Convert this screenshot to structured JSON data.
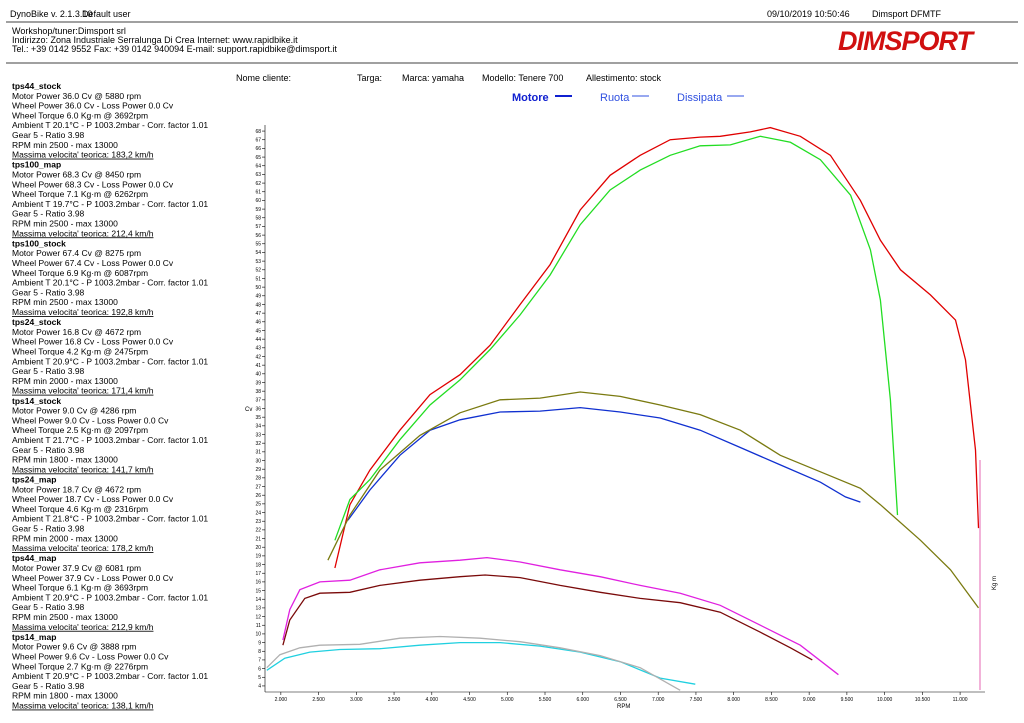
{
  "header": {
    "app": "DynoBike v. 2.1.3.10",
    "user": "Default user",
    "datetime": "09/10/2019 10:50:46",
    "device": "Dimsport DFMTF",
    "workshop": [
      "Workshop/tuner:Dimsport srl",
      "Indirizzo: Zona Industriale Serralunga Di Crea Internet: www.rapidbike.it",
      "Tel.: +39 0142 9552 Fax: +39 0142 940094 E-mail: support.rapidbike@dimsport.it"
    ],
    "logo": "DIMSPORT"
  },
  "info": [
    "Nome cliente:",
    "Targa:",
    "Marca: yamaha",
    "Modello: Tenere 700",
    "Allestimento: stock"
  ],
  "modes": [
    "Motore",
    "Ruota",
    "Dissipata"
  ],
  "chart_data": {
    "type": "line",
    "x_label": "RPM",
    "y_label": "Cv",
    "y2_label": "Kg m",
    "xlim": [
      1790,
      11330
    ],
    "ylim": [
      3.3,
      68.7
    ],
    "xticks": [
      {
        "value": 2000,
        "label": "2.000"
      },
      {
        "value": 2500,
        "label": "2.500"
      },
      {
        "value": 3000,
        "label": "3.000"
      },
      {
        "value": 3500,
        "label": "3.500"
      },
      {
        "value": 4000,
        "label": "4.000"
      },
      {
        "value": 4500,
        "label": "4.500"
      },
      {
        "value": 5000,
        "label": "5.000"
      },
      {
        "value": 5500,
        "label": "5.500"
      },
      {
        "value": 6000,
        "label": "6.000"
      },
      {
        "value": 6500,
        "label": "6.500"
      },
      {
        "value": 7000,
        "label": "7.000"
      },
      {
        "value": 7500,
        "label": "7.500"
      },
      {
        "value": 8000,
        "label": "8.000"
      },
      {
        "value": 8500,
        "label": "8.500"
      },
      {
        "value": 9000,
        "label": "9.000"
      },
      {
        "value": 9500,
        "label": "9.500"
      },
      {
        "value": 10000,
        "label": "10.000"
      },
      {
        "value": 10500,
        "label": "10.500"
      },
      {
        "value": 11000,
        "label": "11.000"
      }
    ],
    "yticks": [
      4,
      5,
      6,
      7,
      8,
      9,
      10,
      11,
      12,
      13,
      14,
      15,
      16,
      17,
      18,
      19,
      20,
      21,
      22,
      23,
      24,
      25,
      26,
      27,
      28,
      29,
      30,
      31,
      32,
      33,
      34,
      35,
      36,
      37,
      38,
      39,
      40,
      41,
      42,
      43,
      44,
      45,
      46,
      47,
      48,
      49,
      50,
      51,
      52,
      53,
      54,
      55,
      56,
      57,
      58,
      59,
      60,
      61,
      62,
      63,
      64,
      65,
      66,
      67,
      68
    ],
    "series": [
      {
        "name": "tps44_stock",
        "label_color": "#1010c8",
        "color": "#1030d0",
        "lines": [
          "Motor Power 36.0 Cv  @ 5880 rpm",
          "Wheel Power 36.0 Cv  - Loss Power 0.0 Cv",
          "Wheel Torque 6.0 Kg·m  @ 3692rpm",
          "Ambient T 20.1°C - P 1003.2mbar - Corr. factor 1.01",
          "Gear 5 - Ratio 3.98",
          "RPM min 2500 - max 13000",
          "Massima velocita' teorica: 183,2 km/h"
        ],
        "x": [
          2889,
          3180,
          3578,
          3976,
          4374,
          4905,
          5435,
          5966,
          6496,
          7027,
          7557,
          8088,
          8618,
          9149,
          9480,
          9679
        ],
        "values": [
          23.1,
          26.6,
          30.6,
          33.5,
          34.7,
          35.6,
          35.7,
          36.1,
          35.6,
          34.9,
          33.5,
          31.5,
          29.5,
          27.5,
          25.8,
          25.2
        ]
      },
      {
        "name": "tps100_map",
        "label_color": "#e00000",
        "color": "#e00000",
        "lines": [
          "Motor Power 68.3 Cv  @ 8450 rpm",
          "Wheel Power 68.3 Cv  - Loss Power 0.0 Cv",
          "Wheel Torque 7.1 Kg·m  @ 6262rpm",
          "Ambient T 19.7°C - P 1003.2mbar - Corr. factor 1.01",
          "Gear 5 - Ratio 3.98",
          "RPM min 2500 - max 13000",
          "Massima velocita' teorica: 212,4 km/h"
        ],
        "x": [
          2716,
          2915,
          3180,
          3578,
          3976,
          4374,
          4772,
          5170,
          5568,
          5966,
          6363,
          6761,
          7159,
          7557,
          7822,
          8220,
          8485,
          8883,
          9281,
          9679,
          9944,
          10210,
          10607,
          10939,
          11072,
          11204,
          11244
        ],
        "values": [
          17.6,
          24.9,
          28.9,
          33.5,
          37.6,
          39.9,
          43.3,
          48,
          52.6,
          58.9,
          62.9,
          65.2,
          67,
          67.3,
          67.4,
          67.9,
          68.4,
          67.4,
          65.2,
          60,
          55.4,
          52,
          49.1,
          46.2,
          41.6,
          31.2,
          22.2
        ]
      },
      {
        "name": "tps100_stock",
        "label_color": "#22cc22",
        "color": "#22dd22",
        "lines": [
          "Motor Power 67.4 Cv  @ 8275 rpm",
          "Wheel Power 67.4 Cv  - Loss Power 0.0 Cv",
          "Wheel Torque 6.9 Kg·m  @ 6087rpm",
          "Ambient T 20.1°C - P 1003.2mbar - Corr. factor 1.01",
          "Gear 5 - Ratio 3.98",
          "RPM min 2500 - max 13000",
          "Massima velocita' teorica: 192,8 km/h"
        ],
        "x": [
          2716,
          2915,
          3180,
          3578,
          3976,
          4374,
          4772,
          5170,
          5568,
          5966,
          6363,
          6761,
          7159,
          7557,
          7955,
          8353,
          8751,
          9149,
          9549,
          9812,
          9944,
          10077,
          10170
        ],
        "values": [
          20.8,
          25.5,
          27.8,
          32.4,
          36.4,
          39.3,
          42.8,
          46.8,
          51.4,
          57.2,
          61.2,
          63.5,
          65.2,
          66.3,
          66.4,
          67.4,
          66.7,
          64.7,
          60.6,
          54.3,
          48.5,
          37,
          23.7
        ]
      },
      {
        "name": "tps24_stock",
        "label_color": "#8b0000",
        "color": "#7a0a0a",
        "lines": [
          "Motor Power 16.8 Cv  @ 4672 rpm",
          "Wheel Power 16.8 Cv  - Loss Power 0.0 Cv",
          "Wheel Torque 4.2 Kg·m  @ 2475rpm",
          "Ambient T 20.9°C - P 1003.2mbar - Corr. factor 1.01",
          "Gear 5 - Ratio 3.98",
          "RPM min 2000 - max 13000",
          "Massima velocita' teorica: 171,4 km/h"
        ],
        "x": [
          2027,
          2119,
          2318,
          2517,
          2915,
          3313,
          3843,
          4374,
          4706,
          5170,
          5700,
          6231,
          6761,
          7292,
          7822,
          8353,
          8751,
          9042
        ],
        "values": [
          8.7,
          11.6,
          14.1,
          14.7,
          14.8,
          15.6,
          16.2,
          16.6,
          16.8,
          16.5,
          15.6,
          14.8,
          14.1,
          13.6,
          12.5,
          10.2,
          8.4,
          7
        ]
      },
      {
        "name": "tps14_stock",
        "label_color": "#22c8d8",
        "color": "#20d0e0",
        "lines": [
          "Motor Power 9.0 Cv  @ 4286 rpm",
          "Wheel Power 9.0 Cv  - Loss Power 0.0 Cv",
          "Wheel Torque 2.5 Kg·m  @ 2097rpm",
          "Ambient T 21.7°C - P 1003.2mbar - Corr. factor 1.01",
          "Gear 5 - Ratio 3.98",
          "RPM min 1800 - max 13000",
          "Massima velocita' teorica: 141,7 km/h"
        ],
        "x": [
          1814,
          2053,
          2385,
          2782,
          3313,
          3843,
          4374,
          4905,
          5435,
          5966,
          6496,
          7027,
          7491
        ],
        "values": [
          5.8,
          7.2,
          7.9,
          8.2,
          8.3,
          8.7,
          9,
          9,
          8.6,
          7.9,
          6.8,
          4.9,
          4.2
        ]
      },
      {
        "name": "tps24_map",
        "label_color": "#e020e0",
        "color": "#e020e0",
        "lines": [
          "Motor Power 18.7 Cv  @ 4672 rpm",
          "Wheel Power 18.7 Cv  - Loss Power 0.0 Cv",
          "Wheel Torque 4.6 Kg·m  @ 2316rpm",
          "Ambient T 21.8°C - P 1003.2mbar - Corr. factor 1.01",
          "Gear 5 - Ratio 3.98",
          "RPM min 2000 - max 13000",
          "Massima velocita' teorica: 178,2 km/h"
        ],
        "x": [
          2027,
          2119,
          2252,
          2517,
          2915,
          3313,
          3843,
          4374,
          4732,
          5170,
          5700,
          6231,
          6761,
          7292,
          7822,
          8353,
          8883,
          9387
        ],
        "values": [
          9.3,
          12.8,
          15.1,
          16,
          16.2,
          17.4,
          18.2,
          18.5,
          18.8,
          18.3,
          17.4,
          16.6,
          15.6,
          14.7,
          13.3,
          11,
          8.7,
          5.3
        ]
      },
      {
        "name": "tps44_map",
        "label_color": "#808010",
        "color": "#7a7a10",
        "lines": [
          "Motor Power 37.9 Cv  @ 6081 rpm",
          "Wheel Power 37.9 Cv  - Loss Power 0.0 Cv",
          "Wheel Torque 6.1 Kg·m  @ 3693rpm",
          "Ambient T 20.9°C - P 1003.2mbar - Corr. factor 1.01",
          "Gear 5 - Ratio 3.98",
          "RPM min 2500 - max 13000",
          "Massima velocita' teorica: 212,9 km/h"
        ],
        "x": [
          2623,
          2915,
          3313,
          3843,
          4374,
          4905,
          5435,
          5966,
          6496,
          7027,
          7557,
          8088,
          8618,
          9149,
          9679,
          9944,
          10475,
          10873,
          11244
        ],
        "values": [
          18.5,
          23.7,
          28.9,
          32.9,
          35.5,
          37,
          37.2,
          37.9,
          37.4,
          36.4,
          35.3,
          33.5,
          30.6,
          28.7,
          26.8,
          24.9,
          20.8,
          17.4,
          13
        ]
      },
      {
        "name": "tps14_map",
        "label_color": "#208888",
        "color": "#b0b0b0",
        "lines": [
          "Motor Power 9.6 Cv  @ 3888 rpm",
          "Wheel Power 9.6 Cv  - Loss Power 0.0 Cv",
          "Wheel Torque 2.7 Kg·m  @ 2276rpm",
          "Ambient T 20.9°C - P 1003.2mbar - Corr. factor 1.01",
          "Gear 5 - Ratio 3.98",
          "RPM min 1800 - max 13000",
          "Massima velocita' teorica: 138,1 km/h"
        ],
        "x": [
          1814,
          1987,
          2252,
          2517,
          3048,
          3578,
          4109,
          4639,
          5170,
          5700,
          6231,
          6761,
          7292
        ],
        "values": [
          6.1,
          7.6,
          8.4,
          8.7,
          8.8,
          9.5,
          9.7,
          9.5,
          9.1,
          8.4,
          7.5,
          6.1,
          3.5
        ]
      }
    ]
  }
}
